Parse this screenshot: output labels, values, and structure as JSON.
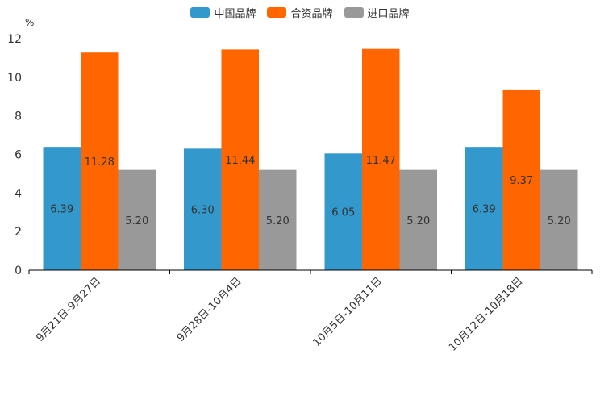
{
  "chart_data": {
    "type": "bar",
    "unit_label": "%",
    "categories": [
      "9月21日-9月27日",
      "9月28日-10月4日",
      "10月5日-10月11日",
      "10月12日-10月18日"
    ],
    "series": [
      {
        "name": "中国品牌",
        "color": "#3399cc",
        "values": [
          6.39,
          6.3,
          6.05,
          6.39
        ],
        "labels": [
          "6.39",
          "6.30",
          "6.05",
          "6.39"
        ]
      },
      {
        "name": "合资品牌",
        "color": "#ff6600",
        "values": [
          11.28,
          11.44,
          11.47,
          9.37
        ],
        "labels": [
          "11.28",
          "11.44",
          "11.47",
          "9.37"
        ]
      },
      {
        "name": "进口品牌",
        "color": "#999999",
        "values": [
          5.2,
          5.2,
          5.2,
          5.2
        ],
        "labels": [
          "5.20",
          "5.20",
          "5.20",
          "5.20"
        ]
      }
    ],
    "ylim": [
      0,
      12
    ],
    "yticks": [
      "0",
      "2",
      "4",
      "6",
      "8",
      "10",
      "12"
    ],
    "legend_position": "top-center",
    "grid": false
  }
}
